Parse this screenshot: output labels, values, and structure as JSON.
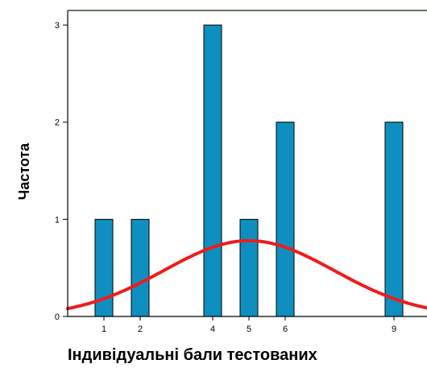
{
  "chart_data": {
    "type": "bar",
    "title": "",
    "xlabel": "Індивідуальні бали тестованих",
    "ylabel": "Частота",
    "x_values": [
      1,
      2,
      4,
      5,
      6,
      9
    ],
    "values": [
      1,
      1,
      3,
      1,
      2,
      2
    ],
    "x_tick_labels": [
      "1",
      "2",
      "4",
      "5",
      "6",
      "9"
    ],
    "y_ticks": [
      0,
      1,
      2,
      3
    ],
    "y_tick_labels": [
      "0",
      "1",
      "2",
      "3"
    ],
    "ylim": [
      0,
      3.15
    ],
    "grid": false,
    "overlay": {
      "type": "normal-curve",
      "peak_x": 5,
      "peak_y": 0.78
    },
    "colors": {
      "bar_fill": "#0f8fc0",
      "bar_stroke": "#000000",
      "curve": "#ee1c1c",
      "plot_frame": "#2b4a2b",
      "axis": "#000000"
    }
  }
}
